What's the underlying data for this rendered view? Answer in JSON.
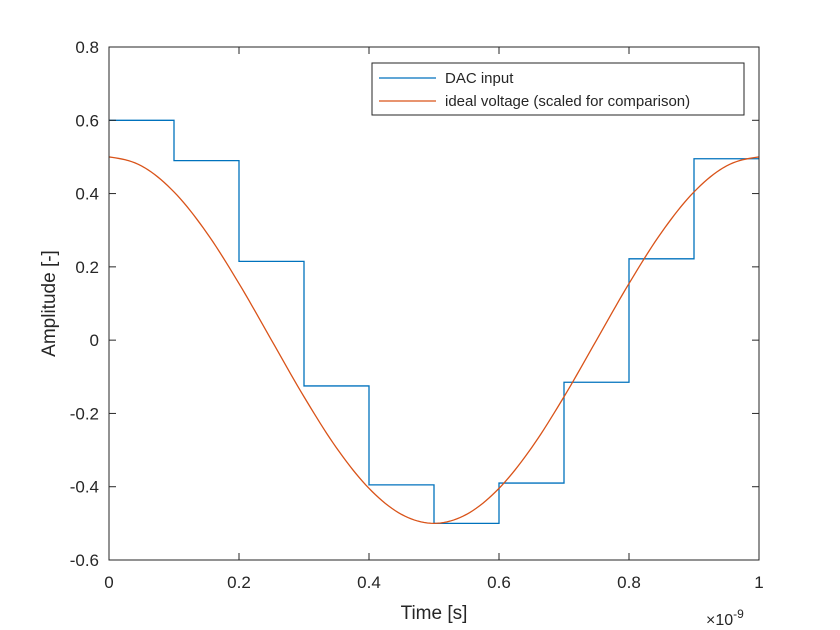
{
  "chart_data": {
    "type": "line",
    "xlabel": "Time [s]",
    "ylabel": "Amplitude [-]",
    "x_exponent_label": {
      "base": "×10",
      "exponent": "-9"
    },
    "xlim": [
      0,
      1
    ],
    "ylim": [
      -0.6,
      0.8
    ],
    "x_ticks": [
      {
        "value": 0,
        "label": "0"
      },
      {
        "value": 0.2,
        "label": "0.2"
      },
      {
        "value": 0.4,
        "label": "0.4"
      },
      {
        "value": 0.6,
        "label": "0.6"
      },
      {
        "value": 0.8,
        "label": "0.8"
      },
      {
        "value": 1,
        "label": "1"
      }
    ],
    "y_ticks": [
      {
        "value": -0.6,
        "label": "-0.6"
      },
      {
        "value": -0.4,
        "label": "-0.4"
      },
      {
        "value": -0.2,
        "label": "-0.2"
      },
      {
        "value": 0,
        "label": "0"
      },
      {
        "value": 0.2,
        "label": "0.2"
      },
      {
        "value": 0.4,
        "label": "0.4"
      },
      {
        "value": 0.6,
        "label": "0.6"
      },
      {
        "value": 0.8,
        "label": "0.8"
      }
    ],
    "grid": false,
    "legend_position": "top-right",
    "series": [
      {
        "name": "DAC input",
        "style": "stairs",
        "color": "#0072BD",
        "x": [
          0,
          0.1,
          0.2,
          0.3,
          0.4,
          0.5,
          0.6,
          0.7,
          0.8,
          0.9,
          1.0
        ],
        "y": [
          0.6,
          0.49,
          0.215,
          -0.125,
          -0.395,
          -0.5,
          -0.39,
          -0.115,
          0.222,
          0.495,
          0.495
        ]
      },
      {
        "name": "ideal voltage (scaled for comparison)",
        "style": "line",
        "color": "#D95319",
        "x": [
          0,
          0.05,
          0.1,
          0.15,
          0.2,
          0.25,
          0.3,
          0.35,
          0.4,
          0.45,
          0.5,
          0.55,
          0.6,
          0.65,
          0.7,
          0.75,
          0.8,
          0.85,
          0.9,
          0.95,
          1.0
        ],
        "y": [
          0.5,
          0.4755,
          0.4045,
          0.2939,
          0.1545,
          0.0,
          -0.1545,
          -0.2939,
          -0.4045,
          -0.4755,
          -0.5,
          -0.4755,
          -0.4045,
          -0.2939,
          -0.1545,
          0.0,
          0.1545,
          0.2939,
          0.4045,
          0.4755,
          0.5
        ]
      }
    ]
  }
}
